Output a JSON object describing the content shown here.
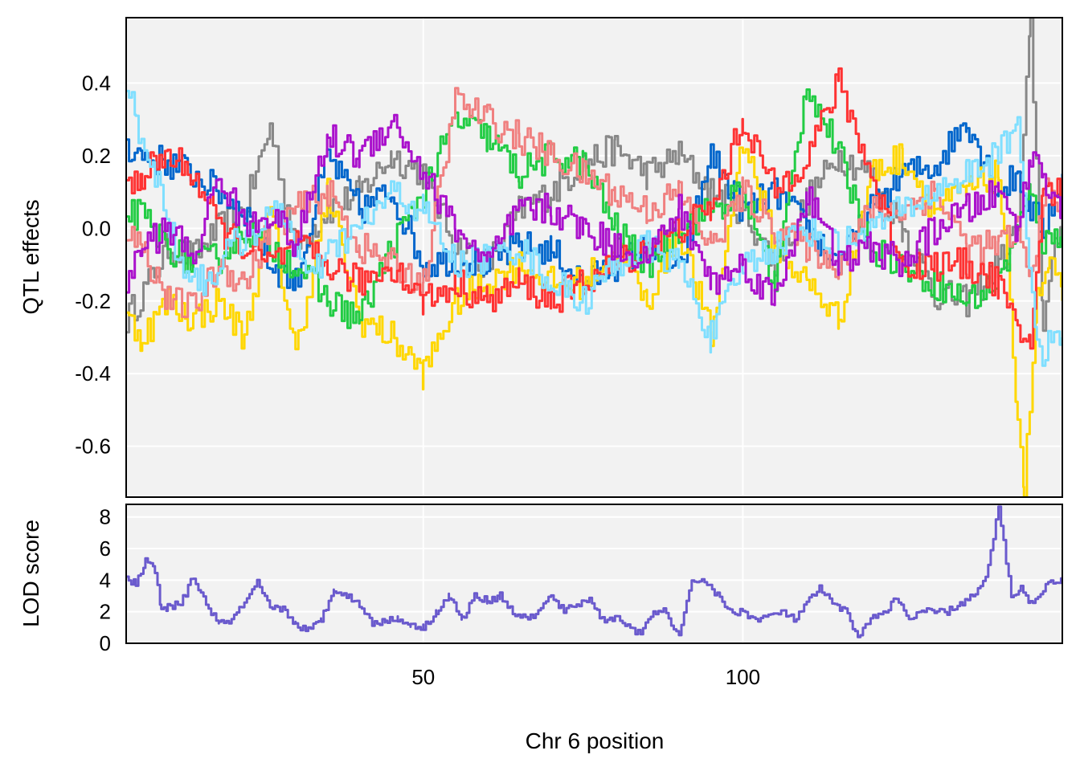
{
  "chart_data": [
    {
      "type": "line",
      "panel": "top",
      "title": "",
      "xlabel": "",
      "ylabel": "QTL effects",
      "xlim": [
        3.5,
        150
      ],
      "ylim": [
        -0.74,
        0.58
      ],
      "y_ticks": [
        0.4,
        0.2,
        0.0,
        -0.2,
        -0.4,
        -0.6
      ],
      "y_tick_labels": [
        "0.4",
        "0.2",
        "0.0",
        "-0.2",
        "-0.4",
        "-0.6"
      ],
      "x_gridlines": [
        50,
        100
      ],
      "grid": true,
      "legend": "none",
      "series": [
        {
          "color": "#888888",
          "x": [
            3.5,
            7,
            10,
            14,
            18,
            22,
            26,
            30,
            35,
            40,
            45,
            50,
            55,
            60,
            65,
            70,
            75,
            80,
            85,
            90,
            95,
            100,
            105,
            110,
            115,
            120,
            125,
            130,
            135,
            140,
            143,
            145,
            147,
            150
          ],
          "values": [
            -0.25,
            -0.15,
            -0.05,
            -0.08,
            0.0,
            0.05,
            0.28,
            -0.05,
            0.05,
            0.1,
            0.2,
            0.15,
            -0.05,
            -0.1,
            0.05,
            0.1,
            0.18,
            0.22,
            0.15,
            0.2,
            0.1,
            0.05,
            -0.1,
            0.08,
            0.2,
            0.15,
            0.0,
            -0.18,
            -0.2,
            -0.1,
            0.0,
            0.56,
            -0.25,
            0.05
          ]
        },
        {
          "color": "#0066CC",
          "x": [
            3.5,
            6,
            10,
            14,
            18,
            22,
            26,
            30,
            35,
            40,
            45,
            50,
            55,
            60,
            65,
            70,
            75,
            80,
            85,
            90,
            95,
            100,
            105,
            110,
            115,
            120,
            125,
            130,
            135,
            140,
            143,
            145,
            147,
            150
          ],
          "values": [
            0.23,
            0.2,
            0.18,
            0.15,
            0.1,
            0.05,
            -0.1,
            -0.15,
            0.2,
            0.05,
            0.1,
            -0.1,
            -0.08,
            -0.1,
            -0.05,
            -0.06,
            -0.15,
            -0.1,
            -0.05,
            -0.12,
            0.2,
            0.05,
            0.1,
            0.0,
            -0.1,
            0.05,
            0.15,
            0.17,
            0.3,
            0.1,
            0.15,
            0.05,
            0.0,
            0.15
          ]
        },
        {
          "color": "#FFD700",
          "x": [
            3.5,
            6,
            10,
            14,
            18,
            22,
            26,
            30,
            35,
            40,
            45,
            50,
            55,
            60,
            65,
            70,
            75,
            80,
            85,
            90,
            95,
            100,
            105,
            110,
            115,
            120,
            125,
            130,
            135,
            140,
            143,
            144,
            146,
            148,
            150
          ],
          "values": [
            -0.25,
            -0.3,
            -0.2,
            -0.25,
            -0.2,
            -0.3,
            0.05,
            -0.35,
            0.1,
            -0.25,
            -0.3,
            -0.4,
            -0.2,
            -0.15,
            -0.1,
            -0.15,
            -0.15,
            -0.05,
            -0.2,
            0.0,
            -0.3,
            0.25,
            -0.05,
            -0.15,
            -0.25,
            0.15,
            0.2,
            0.05,
            0.1,
            0.15,
            -0.5,
            -0.72,
            -0.2,
            -0.1,
            -0.2
          ]
        },
        {
          "color": "#22CC44",
          "x": [
            3.5,
            6,
            10,
            14,
            18,
            22,
            26,
            30,
            35,
            40,
            45,
            50,
            55,
            60,
            65,
            70,
            75,
            80,
            85,
            90,
            95,
            100,
            105,
            110,
            115,
            120,
            125,
            130,
            135,
            140,
            143,
            145,
            147,
            150
          ],
          "values": [
            0.05,
            0.03,
            -0.05,
            -0.1,
            -0.08,
            0.0,
            -0.05,
            -0.1,
            -0.2,
            -0.25,
            -0.05,
            0.1,
            0.3,
            0.25,
            0.15,
            0.2,
            0.18,
            0.0,
            -0.1,
            0.0,
            0.05,
            0.1,
            -0.15,
            0.4,
            0.2,
            -0.05,
            -0.1,
            -0.15,
            -0.2,
            -0.15,
            0.0,
            0.1,
            -0.05,
            0.0
          ]
        },
        {
          "color": "#F08080",
          "x": [
            3.5,
            6,
            10,
            14,
            18,
            22,
            26,
            30,
            35,
            40,
            45,
            50,
            55,
            60,
            65,
            70,
            75,
            80,
            85,
            90,
            95,
            100,
            105,
            110,
            115,
            120,
            125,
            130,
            135,
            140,
            143,
            145,
            147,
            150
          ],
          "values": [
            0.0,
            -0.05,
            -0.2,
            -0.22,
            -0.1,
            -0.15,
            0.0,
            0.05,
            0.1,
            -0.05,
            -0.1,
            -0.15,
            0.35,
            0.3,
            0.25,
            0.2,
            0.15,
            0.1,
            0.05,
            0.1,
            -0.05,
            0.1,
            0.0,
            -0.05,
            -0.1,
            0.05,
            0.05,
            0.1,
            -0.05,
            -0.05,
            0.0,
            -0.15,
            0.1,
            0.05
          ]
        },
        {
          "color": "#FF3333",
          "x": [
            3.5,
            6,
            10,
            14,
            18,
            22,
            26,
            30,
            35,
            40,
            45,
            50,
            55,
            60,
            65,
            70,
            75,
            80,
            85,
            90,
            95,
            100,
            105,
            110,
            115,
            120,
            125,
            130,
            135,
            140,
            143,
            145,
            147,
            150
          ],
          "values": [
            0.1,
            0.15,
            0.2,
            0.15,
            0.0,
            -0.05,
            -0.1,
            -0.05,
            -0.1,
            -0.15,
            -0.1,
            -0.2,
            -0.15,
            -0.2,
            -0.15,
            -0.2,
            -0.15,
            -0.1,
            -0.05,
            0.0,
            0.05,
            0.3,
            0.1,
            0.2,
            0.4,
            0.15,
            -0.1,
            -0.1,
            -0.1,
            -0.15,
            -0.3,
            -0.3,
            0.1,
            0.1
          ]
        },
        {
          "color": "#80DFFF",
          "x": [
            3.5,
            5,
            8,
            12,
            16,
            20,
            24,
            28,
            32,
            36,
            40,
            45,
            50,
            55,
            60,
            65,
            70,
            75,
            80,
            85,
            90,
            95,
            100,
            105,
            110,
            115,
            120,
            125,
            130,
            135,
            140,
            143,
            146,
            150
          ],
          "values": [
            0.4,
            0.3,
            0.15,
            -0.1,
            -0.15,
            -0.05,
            0.0,
            0.05,
            -0.15,
            -0.05,
            0.0,
            0.1,
            0.05,
            -0.1,
            -0.08,
            -0.05,
            -0.15,
            -0.2,
            -0.1,
            -0.05,
            -0.1,
            -0.3,
            -0.1,
            -0.05,
            0.0,
            -0.05,
            0.0,
            0.05,
            0.1,
            0.15,
            0.2,
            0.3,
            -0.35,
            -0.3
          ]
        },
        {
          "color": "#AA11CC",
          "x": [
            3.5,
            6,
            10,
            14,
            18,
            22,
            26,
            30,
            35,
            40,
            45,
            50,
            55,
            60,
            65,
            70,
            75,
            80,
            85,
            90,
            95,
            100,
            105,
            110,
            115,
            120,
            125,
            130,
            135,
            140,
            143,
            145,
            147,
            150
          ],
          "values": [
            -0.15,
            -0.05,
            0.0,
            -0.08,
            0.15,
            0.0,
            0.05,
            -0.05,
            0.25,
            0.2,
            0.3,
            0.15,
            0.0,
            -0.1,
            0.05,
            0.05,
            0.0,
            -0.05,
            -0.08,
            0.05,
            -0.15,
            -0.1,
            -0.2,
            0.1,
            -0.1,
            -0.05,
            -0.1,
            0.0,
            0.05,
            0.1,
            0.0,
            0.2,
            0.15,
            0.05
          ]
        }
      ]
    },
    {
      "type": "line",
      "panel": "bottom",
      "title": "",
      "xlabel": "Chr 6 position",
      "ylabel": "LOD score",
      "xlim": [
        3.5,
        150
      ],
      "ylim": [
        0,
        8.8
      ],
      "y_ticks": [
        0,
        2,
        4,
        6,
        8
      ],
      "y_tick_labels": [
        "0",
        "2",
        "4",
        "6",
        "8"
      ],
      "x_ticks": [
        50,
        100
      ],
      "x_tick_labels": [
        "50",
        "100"
      ],
      "grid": true,
      "legend": "none",
      "series": [
        {
          "color": "#6A5ACD",
          "x": [
            3.5,
            5,
            6.5,
            8,
            9,
            10,
            12,
            14,
            16,
            18,
            20,
            22,
            24,
            26,
            28,
            30,
            32,
            34,
            36,
            38,
            40,
            42,
            44,
            46,
            48,
            50,
            52,
            54,
            56,
            58,
            60,
            62,
            64,
            66,
            68,
            70,
            72,
            74,
            76,
            78,
            80,
            82,
            84,
            86,
            88,
            90,
            92,
            94,
            96,
            98,
            100,
            102,
            104,
            106,
            108,
            110,
            112,
            114,
            116,
            118,
            120,
            122,
            124,
            126,
            128,
            130,
            132,
            134,
            136,
            138,
            140,
            142,
            143.5,
            145,
            147,
            149,
            150
          ],
          "values": [
            4.0,
            3.8,
            5.2,
            4.6,
            2.0,
            2.3,
            2.5,
            4.2,
            2.5,
            1.2,
            1.5,
            2.5,
            3.8,
            2.2,
            2.2,
            1.2,
            0.8,
            1.5,
            3.5,
            3.0,
            2.5,
            1.2,
            1.5,
            1.5,
            1.2,
            1.0,
            2.0,
            3.0,
            1.5,
            3.0,
            2.7,
            3.0,
            2.0,
            1.5,
            2.0,
            3.0,
            2.0,
            2.5,
            2.8,
            1.5,
            1.6,
            1.2,
            0.5,
            2.0,
            2.0,
            0.3,
            4.0,
            4.0,
            3.0,
            2.0,
            2.0,
            1.5,
            1.7,
            2.0,
            1.5,
            2.5,
            3.5,
            2.5,
            2.0,
            0.5,
            1.5,
            2.0,
            2.8,
            1.5,
            2.0,
            2.0,
            2.0,
            2.5,
            3.0,
            4.0,
            8.6,
            3.0,
            3.5,
            2.5,
            3.5,
            4.0,
            4.0
          ]
        }
      ]
    }
  ]
}
